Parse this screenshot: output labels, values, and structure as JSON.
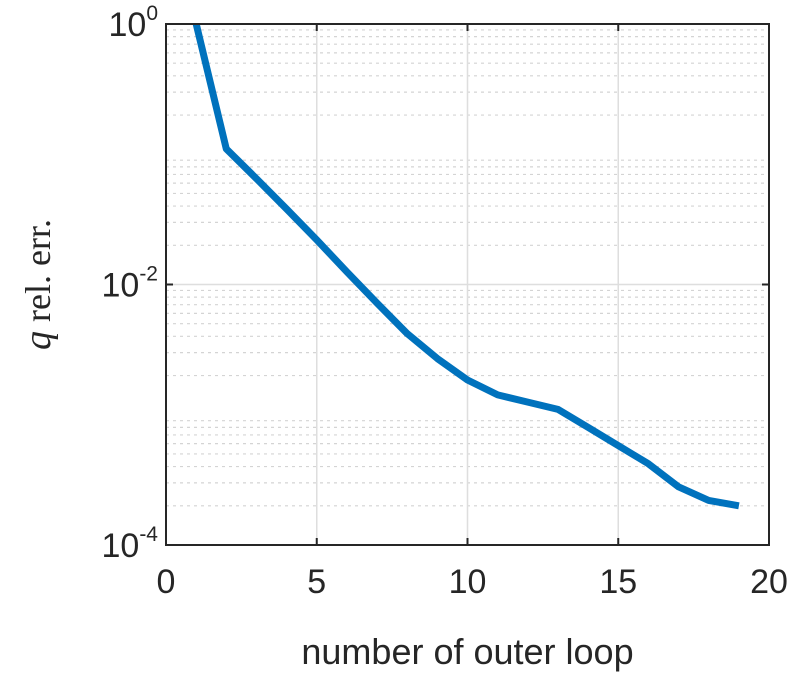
{
  "chart_data": {
    "type": "line",
    "xlabel": "number of outer loop",
    "ylabel_var": "q",
    "ylabel_text": " rel.  err.",
    "xlim": [
      0,
      20
    ],
    "ylim": [
      0.0001,
      1
    ],
    "yscale": "log",
    "grid": true,
    "minor_grid_y": true,
    "x_ticks": [
      0,
      5,
      10,
      15,
      20
    ],
    "x_tick_labels": [
      "0",
      "5",
      "10",
      "15",
      "20"
    ],
    "y_ticks": [
      {
        "value": 1,
        "base": "10",
        "exp": "0"
      },
      {
        "value": 0.01,
        "base": "10",
        "exp": "-2"
      },
      {
        "value": 0.0001,
        "base": "10",
        "exp": "-4"
      }
    ],
    "series": [
      {
        "color": "#0072bd",
        "x": [
          1,
          2,
          3,
          4,
          5,
          6,
          7,
          8,
          9,
          10,
          11,
          12,
          13,
          14,
          15,
          16,
          17,
          18,
          19
        ],
        "y": [
          1.0,
          0.11,
          0.065,
          0.038,
          0.022,
          0.0125,
          0.0072,
          0.0042,
          0.0027,
          0.00185,
          0.00142,
          0.00125,
          0.0011,
          0.0008,
          0.00058,
          0.00042,
          0.00028,
          0.00022,
          0.0002
        ]
      }
    ]
  }
}
